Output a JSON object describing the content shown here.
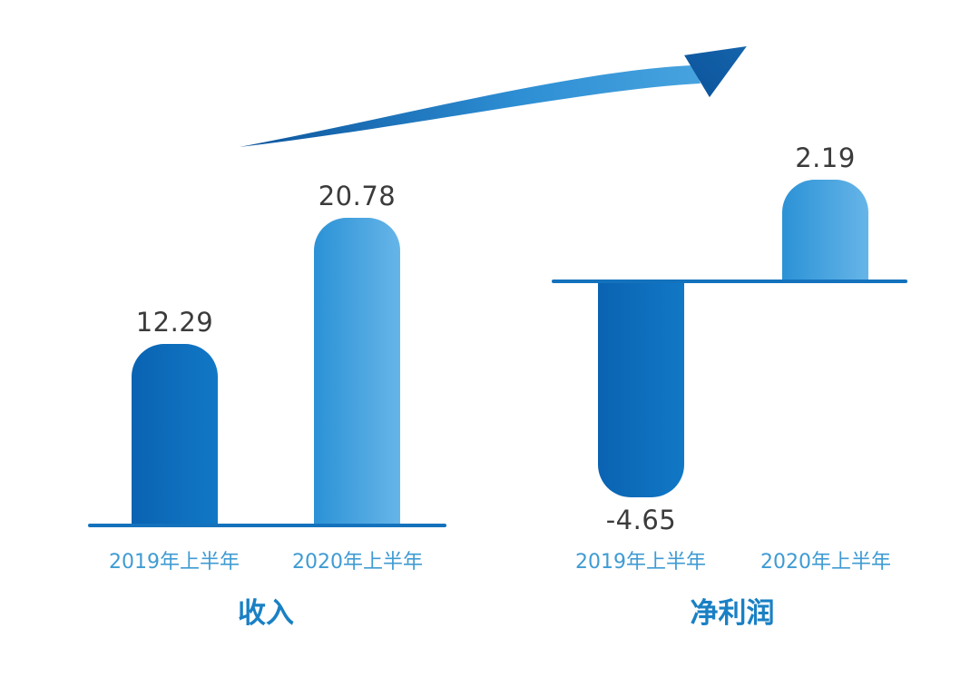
{
  "chart_data": [
    {
      "type": "bar",
      "title": "收入",
      "categories": [
        "2019年上半年",
        "2020年上半年"
      ],
      "values": [
        12.29,
        20.78
      ],
      "value_labels": [
        "12.29",
        "20.78"
      ],
      "bar_colors": [
        "#0d6cba",
        "#46a3dd"
      ],
      "xlabel": "",
      "ylabel": "",
      "grid": false,
      "legend": false,
      "baseline_shown": true
    },
    {
      "type": "bar",
      "title": "净利润",
      "categories": [
        "2019年上半年",
        "2020年上半年"
      ],
      "values": [
        -4.65,
        2.19
      ],
      "value_labels": [
        "-4.65",
        "2.19"
      ],
      "bar_colors": [
        "#0d6cba",
        "#46a3dd"
      ],
      "xlabel": "",
      "ylabel": "",
      "grid": false,
      "legend": false,
      "baseline_shown": true
    }
  ],
  "annotations": {
    "growth_arrow": "upward curved trend arrow"
  },
  "colors": {
    "bar_dark_start": "#0a63b2",
    "bar_dark_end": "#1178c6",
    "bar_light_start": "#2b92d6",
    "bar_light_end": "#66b5e8",
    "baseline": "#1472bd",
    "value_text": "#3b3b3b",
    "category_text": "#3f9bd3",
    "title_text": "#1a80c4",
    "arrow_start": "#0b539b",
    "arrow_mid": "#2e8fd4",
    "arrow_end": "#4fa9e2"
  }
}
